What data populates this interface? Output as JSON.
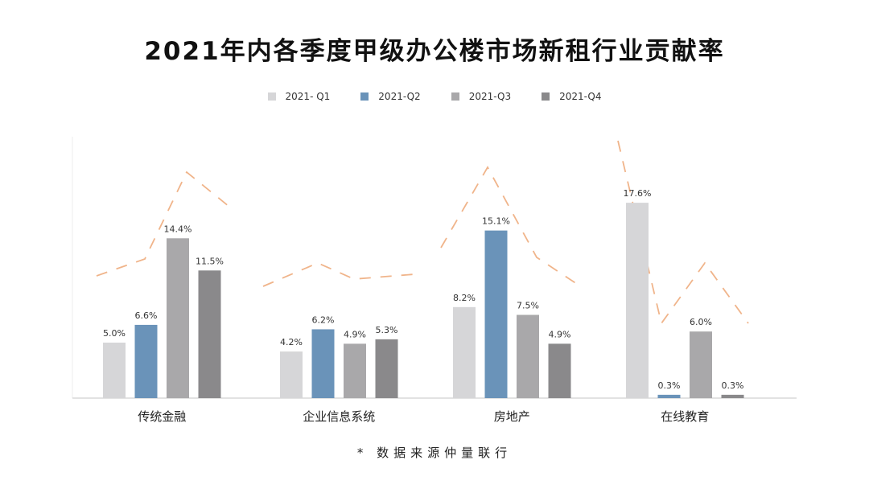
{
  "chart_data": {
    "type": "bar",
    "title": "2021年内各季度甲级办公楼市场新租行业贡献率",
    "categories": [
      "传统金融",
      "企业信息系统",
      "房地产",
      "在线教育"
    ],
    "series": [
      {
        "name": "2021- Q1",
        "color": "#d6d6d8",
        "values": [
          5.0,
          4.2,
          8.2,
          17.6
        ]
      },
      {
        "name": "2021-Q2",
        "color": "#6a93b9",
        "values": [
          6.6,
          6.2,
          15.1,
          0.3
        ]
      },
      {
        "name": "2021-Q3",
        "color": "#a9a8aa",
        "values": [
          14.4,
          4.9,
          7.5,
          6.0
        ]
      },
      {
        "name": "2021-Q4",
        "color": "#8a898b",
        "values": [
          11.5,
          5.3,
          4.9,
          0.3
        ]
      }
    ],
    "data_labels": [
      [
        "5.0%",
        "4.2%",
        "8.2%",
        "17.6%"
      ],
      [
        "6.6%",
        "6.2%",
        "15.1%",
        "0.3%"
      ],
      [
        "14.4%",
        "4.9%",
        "7.5%",
        "6.0%"
      ],
      [
        "11.5%",
        "5.3%",
        "4.9%",
        "0.3%"
      ]
    ],
    "legend_position": "top",
    "grid": false,
    "ylim": [
      0,
      23
    ],
    "decor_line_color": "#f0b48a"
  },
  "note": "* 数据来源仲量联行"
}
